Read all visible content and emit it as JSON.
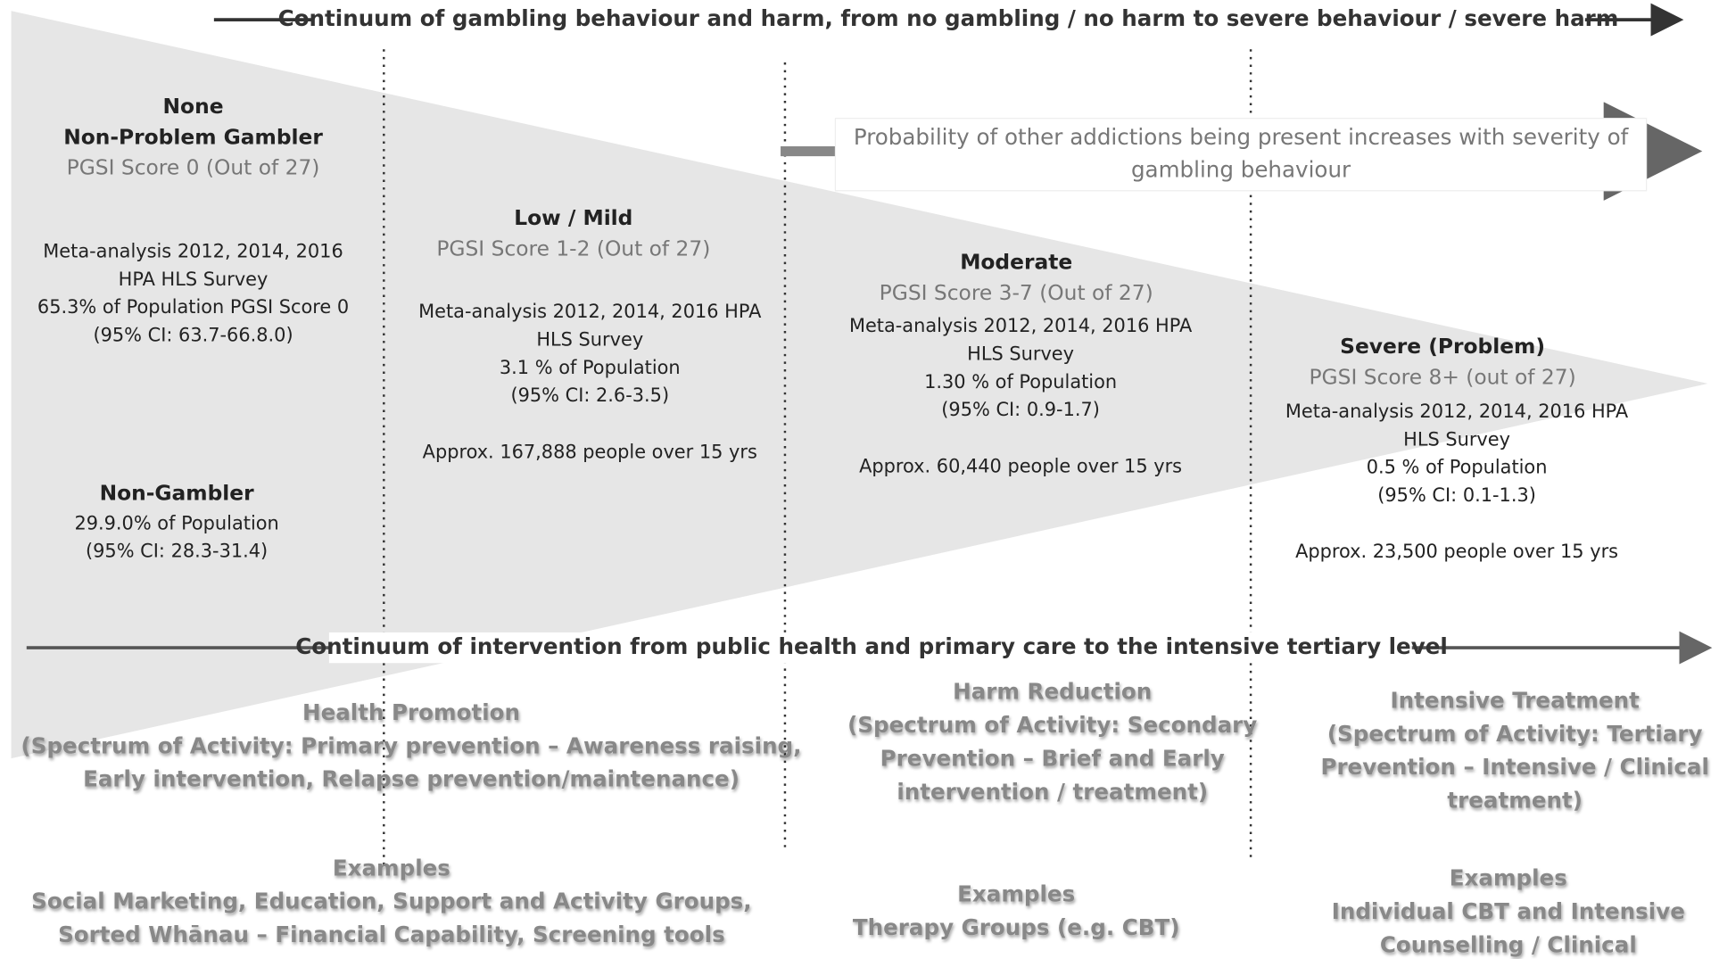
{
  "header": {
    "title": "Continuum of gambling behaviour and harm, from no gambling / no harm to  severe behaviour / severe harm"
  },
  "note": {
    "lines": [
      "Probability of other addictions being present  increases with severity of",
      "gambling behaviour"
    ]
  },
  "groups": [
    {
      "title": [
        "None",
        "Non-Problem Gambler"
      ],
      "score": "PGSI Score 0 (Out of 27)",
      "details": [
        "Meta-analysis 2012, 2014, 2016",
        "HPA HLS Survey",
        "65.3% of Population PGSI Score 0",
        "(95% CI: 63.7-66.8.0)"
      ]
    },
    {
      "title": [
        "Non-Gambler"
      ],
      "details": [
        "29.9.0% of Population",
        "(95% CI: 28.3-31.4)"
      ]
    },
    {
      "title": [
        "Low / Mild"
      ],
      "score": "PGSI Score 1-2 (Out of 27)",
      "details": [
        "Meta-analysis 2012, 2014, 2016 HPA",
        "HLS Survey",
        "3.1 % of Population",
        "(95% CI: 2.6-3.5)"
      ],
      "approx": "Approx. 167,888 people over 15 yrs"
    },
    {
      "title": [
        "Moderate"
      ],
      "score": "PGSI Score 3-7 (Out of 27)",
      "details": [
        "Meta-analysis 2012, 2014, 2016 HPA",
        "HLS Survey",
        "1.30 % of Population",
        "(95% CI: 0.9-1.7)"
      ],
      "approx": "Approx. 60,440 people over 15 yrs"
    },
    {
      "title": [
        "Severe (Problem)"
      ],
      "score": "PGSI Score 8+ (out of 27)",
      "details": [
        "Meta-analysis 2012, 2014, 2016 HPA",
        "HLS Survey",
        "0.5 % of Population",
        "(95% CI: 0.1-1.3)"
      ],
      "approx": "Approx. 23,500 people over 15 yrs"
    }
  ],
  "intervention": {
    "title": "Continuum of intervention from public health and primary care to the intensive tertiary level",
    "levels": [
      {
        "lines": [
          "Health Promotion",
          "(Spectrum of Activity: Primary prevention – Awareness raising,",
          "Early intervention, Relapse prevention/maintenance)"
        ],
        "examples": [
          "Examples",
          "Social Marketing, Education, Support and Activity Groups,",
          "Sorted Whānau – Financial Capability, Screening tools"
        ]
      },
      {
        "lines": [
          "Harm Reduction",
          "(Spectrum of Activity: Secondary",
          "Prevention – Brief and Early",
          "intervention / treatment)"
        ],
        "examples": [
          "Examples",
          "Therapy Groups (e.g. CBT)"
        ]
      },
      {
        "lines": [
          "Intensive Treatment",
          "(Spectrum of Activity: Tertiary",
          "Prevention – Intensive / Clinical",
          "treatment)"
        ],
        "examples": [
          "Examples",
          "Individual CBT and Intensive",
          "Counselling / Clinical"
        ]
      }
    ]
  }
}
